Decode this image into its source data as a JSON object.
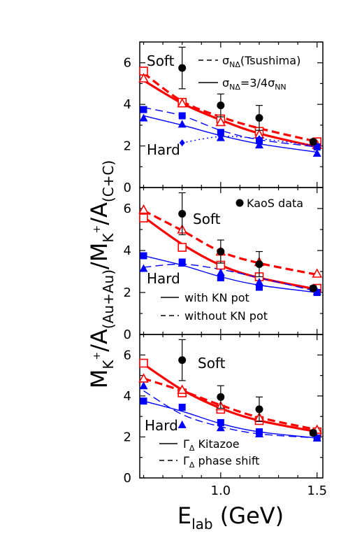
{
  "figure": {
    "ylabel_parts": [
      "M",
      "K",
      "+",
      "/A",
      "(Au+Au)",
      "/M",
      "K",
      "+",
      "/A",
      "(C+C)"
    ],
    "xlabel_main": "E",
    "xlabel_sub": "lab",
    "xlabel_unit": " (GeV)"
  },
  "colors": {
    "red": "#ff0000",
    "blue": "#0000ff",
    "black": "#000000"
  },
  "chart_data": [
    {
      "type": "line",
      "panel": "top",
      "xlim": [
        0.58,
        1.53
      ],
      "ylim": [
        0,
        7
      ],
      "yticks": [
        "0",
        "2",
        "4",
        "6"
      ],
      "xticks": [
        "1.0",
        "1.5"
      ],
      "labels": {
        "soft": "Soft",
        "hard": "Hard"
      },
      "legend": [
        {
          "style": "dashed",
          "prefix": "σ",
          "sub": "NΔ",
          "suffix": "(Tsushima)"
        },
        {
          "style": "solid",
          "prefix": "σ",
          "sub": "NΔ",
          "mid": "=3/4σ",
          "sub2": "NN"
        }
      ],
      "lines": [
        {
          "color": "red",
          "style": "solid",
          "width": 3.2,
          "x": [
            0.6,
            0.8,
            1.0,
            1.2,
            1.5
          ],
          "y": [
            5.15,
            4.05,
            3.25,
            2.6,
            1.95
          ]
        },
        {
          "color": "red",
          "style": "dashed",
          "width": 3.2,
          "x": [
            0.6,
            0.8,
            1.0,
            1.2,
            1.5
          ],
          "y": [
            5.5,
            4.15,
            3.4,
            2.85,
            2.2
          ]
        },
        {
          "color": "blue",
          "style": "solid",
          "width": 1.4,
          "x": [
            0.6,
            0.8,
            1.0,
            1.2,
            1.5
          ],
          "y": [
            3.45,
            3.0,
            2.5,
            2.1,
            1.7
          ]
        },
        {
          "color": "blue",
          "style": "dashed",
          "width": 1.4,
          "x": [
            0.6,
            0.8,
            1.0,
            1.2,
            1.5
          ],
          "y": [
            3.85,
            3.45,
            2.75,
            2.3,
            1.95
          ]
        },
        {
          "color": "blue",
          "style": "dotted",
          "width": 1.4,
          "x": [
            0.8,
            1.0,
            1.2,
            1.5
          ],
          "y": [
            2.15,
            2.45,
            2.35,
            2.0
          ]
        }
      ],
      "markers": [
        {
          "shape": "square-open",
          "color": "red",
          "x": [
            0.6,
            0.8,
            1.0,
            1.2,
            1.5
          ],
          "y": [
            5.6,
            4.1,
            3.3,
            2.7,
            2.2
          ]
        },
        {
          "shape": "triangle-open",
          "color": "red",
          "x": [
            0.6,
            0.8,
            1.0,
            1.2,
            1.5
          ],
          "y": [
            5.25,
            4.05,
            3.15,
            2.55,
            2.05
          ]
        },
        {
          "shape": "square-filled",
          "color": "blue",
          "x": [
            0.6,
            0.8,
            1.0,
            1.2,
            1.5
          ],
          "y": [
            3.75,
            3.45,
            2.65,
            2.25,
            1.95
          ]
        },
        {
          "shape": "triangle-filled",
          "color": "blue",
          "x": [
            0.6,
            0.8,
            1.0,
            1.2,
            1.5
          ],
          "y": [
            3.35,
            3.05,
            2.4,
            2.05,
            1.65
          ]
        },
        {
          "shape": "diamond-filled",
          "color": "blue",
          "x": [
            0.8,
            1.0,
            1.2,
            1.5
          ],
          "y": [
            2.15,
            2.45,
            2.35,
            2.0
          ]
        }
      ],
      "data": {
        "x": [
          0.8,
          1.0,
          1.2,
          1.48
        ],
        "y": [
          5.75,
          3.95,
          3.35,
          2.2
        ],
        "err": [
          1.0,
          0.55,
          0.6,
          0.12
        ]
      }
    },
    {
      "type": "line",
      "panel": "middle",
      "xlim": [
        0.58,
        1.53
      ],
      "ylim": [
        0,
        7
      ],
      "yticks": [
        "0",
        "2",
        "4",
        "6"
      ],
      "xticks": [
        "1.0",
        "1.5"
      ],
      "labels": {
        "soft": "Soft",
        "hard": "Hard",
        "data_label": "KaoS data"
      },
      "legend": [
        {
          "style": "solid",
          "text": "with KN pot"
        },
        {
          "style": "dashed",
          "text": "without KN pot"
        }
      ],
      "lines": [
        {
          "color": "red",
          "style": "solid",
          "width": 3.2,
          "x": [
            0.6,
            0.8,
            1.0,
            1.2,
            1.5
          ],
          "y": [
            5.6,
            4.3,
            3.3,
            2.7,
            2.15
          ]
        },
        {
          "color": "red",
          "style": "dashed",
          "width": 3.2,
          "x": [
            0.6,
            0.8,
            1.0,
            1.2,
            1.5
          ],
          "y": [
            5.9,
            4.95,
            3.95,
            3.4,
            2.85
          ]
        },
        {
          "color": "blue",
          "style": "solid",
          "width": 1.4,
          "x": [
            0.6,
            0.8,
            1.0,
            1.2,
            1.5
          ],
          "y": [
            3.75,
            3.3,
            2.75,
            2.35,
            2.0
          ]
        },
        {
          "color": "blue",
          "style": "dashed",
          "width": 1.4,
          "x": [
            0.6,
            0.8,
            1.0,
            1.2,
            1.5
          ],
          "y": [
            3.2,
            3.35,
            3.1,
            2.7,
            2.05
          ]
        }
      ],
      "markers": [
        {
          "shape": "square-open",
          "color": "red",
          "x": [
            0.6,
            0.8,
            1.0,
            1.2,
            1.5
          ],
          "y": [
            5.55,
            4.15,
            3.3,
            2.75,
            2.2
          ]
        },
        {
          "shape": "triangle-open",
          "color": "red",
          "x": [
            0.6,
            0.8,
            1.0,
            1.2,
            1.5
          ],
          "y": [
            5.95,
            5.0,
            3.95,
            3.45,
            2.9
          ]
        },
        {
          "shape": "square-filled",
          "color": "blue",
          "x": [
            0.6,
            0.8,
            1.0,
            1.2,
            1.5
          ],
          "y": [
            3.75,
            3.45,
            2.7,
            2.25,
            2.0
          ]
        },
        {
          "shape": "triangle-filled",
          "color": "blue",
          "x": [
            0.6,
            0.8,
            1.0,
            1.2,
            1.5
          ],
          "y": [
            3.15,
            3.4,
            2.95,
            2.5,
            2.05
          ]
        }
      ],
      "data": {
        "x": [
          0.8,
          1.0,
          1.2,
          1.48
        ],
        "y": [
          5.75,
          3.95,
          3.35,
          2.2
        ],
        "err": [
          1.0,
          0.55,
          0.6,
          0.12
        ]
      }
    },
    {
      "type": "line",
      "panel": "bottom",
      "xlim": [
        0.58,
        1.53
      ],
      "ylim": [
        0,
        7
      ],
      "yticks": [
        "0",
        "2",
        "4",
        "6"
      ],
      "xticks": [
        "1.0",
        "1.5"
      ],
      "labels": {
        "soft": "Soft",
        "hard": "Hard"
      },
      "legend": [
        {
          "style": "solid",
          "prefix": "Γ",
          "sub": "Δ",
          "suffix": " Kitazoe"
        },
        {
          "style": "dashed",
          "prefix": "Γ",
          "sub": "Δ",
          "suffix": " phase shift"
        }
      ],
      "lines": [
        {
          "color": "red",
          "style": "solid",
          "width": 3.2,
          "x": [
            0.6,
            0.8,
            1.0,
            1.2,
            1.5
          ],
          "y": [
            5.55,
            4.3,
            3.4,
            2.8,
            2.25
          ]
        },
        {
          "color": "red",
          "style": "dashed",
          "width": 3.2,
          "x": [
            0.6,
            0.8,
            1.0,
            1.2,
            1.5
          ],
          "y": [
            4.85,
            4.25,
            3.55,
            2.95,
            2.35
          ]
        },
        {
          "color": "blue",
          "style": "solid",
          "width": 1.4,
          "x": [
            0.6,
            0.8,
            1.0,
            1.2,
            1.5
          ],
          "y": [
            3.75,
            3.25,
            2.65,
            2.25,
            1.95
          ]
        },
        {
          "color": "blue",
          "style": "dashed",
          "width": 1.4,
          "x": [
            0.6,
            0.8,
            1.0,
            1.2,
            1.5
          ],
          "y": [
            4.25,
            3.1,
            2.5,
            2.15,
            1.95
          ]
        }
      ],
      "markers": [
        {
          "shape": "square-open",
          "color": "red",
          "x": [
            0.6,
            0.8,
            1.0,
            1.2,
            1.5
          ],
          "y": [
            5.6,
            4.15,
            3.35,
            2.8,
            2.25
          ]
        },
        {
          "shape": "triangle-open",
          "color": "red",
          "x": [
            0.6,
            0.8,
            1.0,
            1.2,
            1.5
          ],
          "y": [
            4.85,
            4.3,
            3.5,
            2.95,
            2.35
          ]
        },
        {
          "shape": "square-filled",
          "color": "blue",
          "x": [
            0.6,
            0.8,
            1.0,
            1.2,
            1.5
          ],
          "y": [
            3.75,
            3.45,
            2.7,
            2.25,
            1.95
          ]
        },
        {
          "shape": "triangle-filled",
          "color": "blue",
          "x": [
            0.6,
            0.8,
            1.0,
            1.2,
            1.5
          ],
          "y": [
            4.5,
            2.6,
            2.45,
            2.15,
            1.95
          ]
        }
      ],
      "data": {
        "x": [
          0.8,
          1.0,
          1.2,
          1.48
        ],
        "y": [
          5.75,
          3.95,
          3.35,
          2.2
        ],
        "err": [
          1.0,
          0.55,
          0.6,
          0.12
        ]
      }
    }
  ]
}
